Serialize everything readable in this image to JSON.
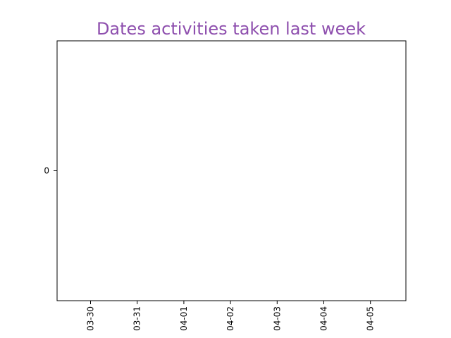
{
  "chart_data": {
    "type": "scatter",
    "title": "Dates activities taken last week",
    "title_color": "#8e4fae",
    "xlabel": "",
    "ylabel": "",
    "x_tick_labels": [
      "03-30",
      "03-31",
      "04-01",
      "04-02",
      "04-03",
      "04-04",
      "04-05"
    ],
    "y_tick_labels": [
      "0"
    ],
    "y_ticks": [
      0
    ],
    "ylim": [
      -0.055,
      0.055
    ],
    "grid": false,
    "series": [],
    "colors": {
      "axis": "#000000",
      "background": "#ffffff"
    }
  }
}
